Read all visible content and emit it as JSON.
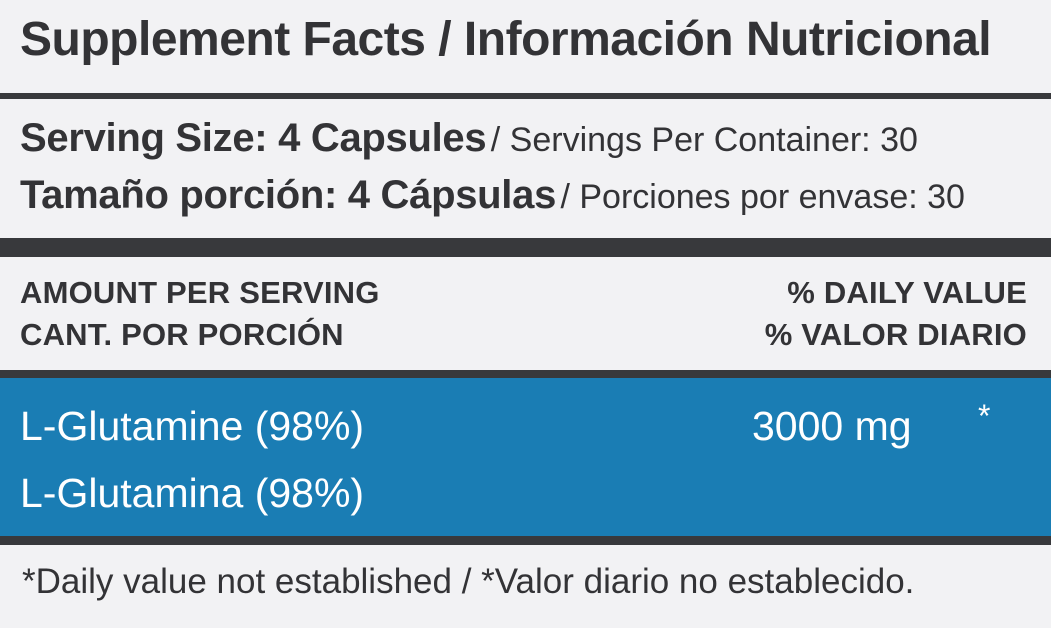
{
  "title": "Supplement Facts / Información Nutricional",
  "serving": {
    "en_bold": "Serving Size: 4 Capsules",
    "en_regular": "/ Servings Per Container: 30",
    "es_bold": "Tamaño porción: 4 Cápsulas",
    "es_regular": "/ Porciones por envase: 30"
  },
  "columns": {
    "amount_en": "AMOUNT PER SERVING",
    "amount_es": "CANT. POR PORCIÓN",
    "dv_en": "% DAILY VALUE",
    "dv_es": "% VALOR DIARIO"
  },
  "ingredients": [
    {
      "name_en": "L-Glutamine (98%)",
      "name_es": "L-Glutamina (98%)",
      "amount": "3000 mg",
      "daily_value": "*"
    }
  ],
  "footnote": "*Daily value not established / *Valor diario no establecido.",
  "colors": {
    "background": "#f2f2f4",
    "text": "#333336",
    "rule": "#38393c",
    "highlight_band": "#1a7db4",
    "highlight_text": "#ffffff"
  }
}
